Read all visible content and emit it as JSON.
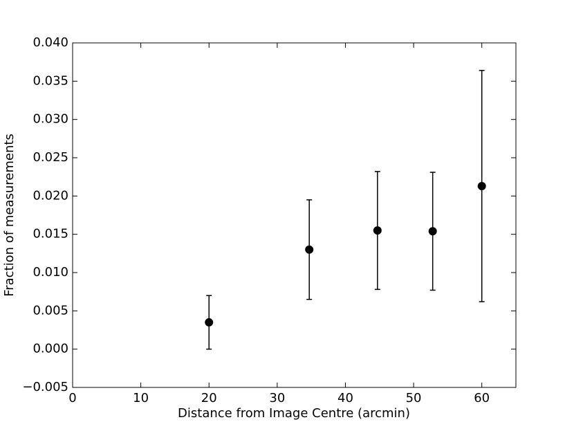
{
  "chart_data": {
    "type": "errorbar",
    "x_label": "Distance from Image Centre (arcmin)",
    "y_label": "Fraction of measurements",
    "series": [
      {
        "color": "#000000",
        "x": [
          20,
          34.7,
          44.7,
          52.8,
          60
        ],
        "values": [
          0.0035,
          0.013,
          0.0155,
          0.0154,
          0.0213
        ],
        "errors": [
          0.0035,
          0.0065,
          0.0077,
          0.0077,
          0.0151
        ]
      }
    ],
    "xlim": [
      0,
      65
    ],
    "xticks": [
      0,
      10,
      20,
      30,
      40,
      50,
      60
    ],
    "ylim": [
      -0.005,
      0.04
    ],
    "yticks": [
      {
        "value": -0.005,
        "label": "−0.005"
      },
      {
        "value": 0,
        "label": "0.000"
      },
      {
        "value": 0.005,
        "label": "0.005"
      },
      {
        "value": 0.01,
        "label": "0.010"
      },
      {
        "value": 0.015,
        "label": "0.015"
      },
      {
        "value": 0.02,
        "label": "0.020"
      },
      {
        "value": 0.025,
        "label": "0.025"
      },
      {
        "value": 0.03,
        "label": "0.030"
      },
      {
        "value": 0.035,
        "label": "0.035"
      },
      {
        "value": 0.04,
        "label": "0.040"
      }
    ],
    "grid": false
  }
}
